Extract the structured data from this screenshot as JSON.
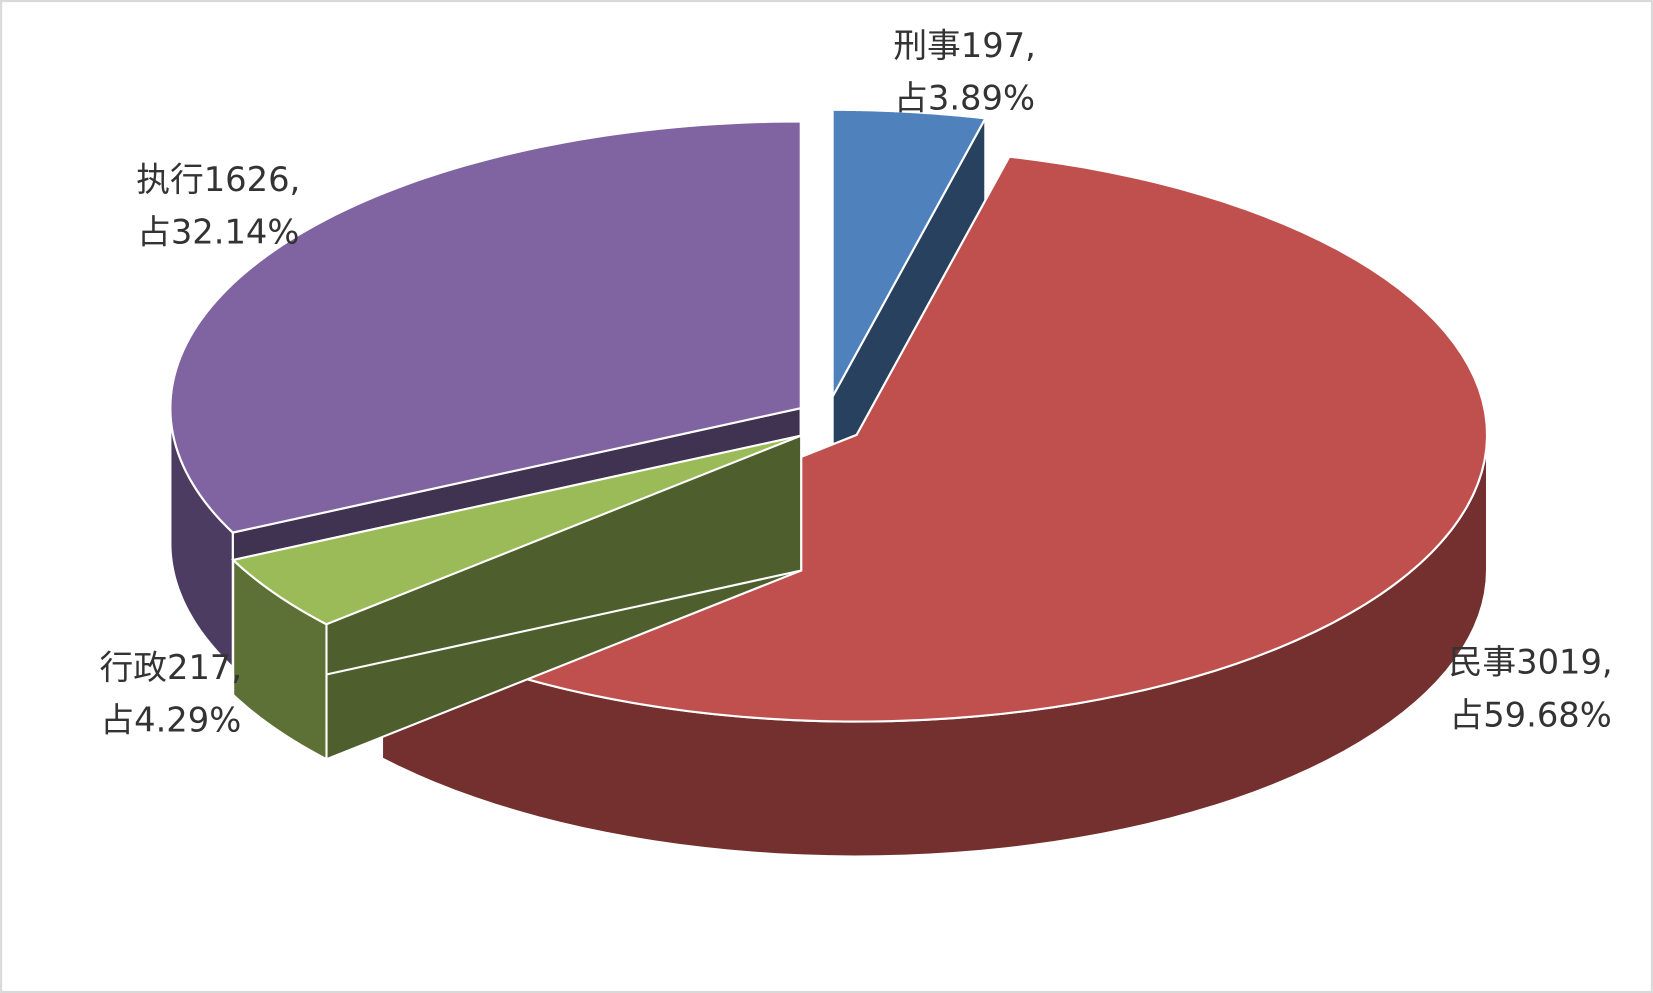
{
  "chart_data": {
    "type": "pie3d",
    "values": [
      197,
      3019,
      217,
      1626
    ],
    "value_labels": [
      "刑事197,",
      "民事3019,",
      "行政217,",
      "执行1626,"
    ],
    "percent_labels": [
      "占3.89%",
      "占59.68%",
      "占4.29%",
      "占32.14%"
    ],
    "colors": [
      "#4f81bd",
      "#c0504d",
      "#9bbb59",
      "#8064a2"
    ]
  }
}
